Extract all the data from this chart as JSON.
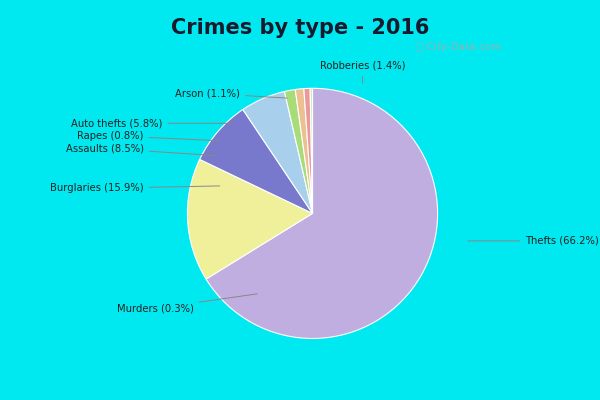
{
  "title": "Crimes by type - 2016",
  "labels": [
    "Thefts",
    "Burglaries",
    "Assaults",
    "Auto thefts",
    "Robberies",
    "Arson",
    "Rapes",
    "Murders"
  ],
  "values": [
    66.2,
    15.9,
    8.5,
    5.8,
    1.4,
    1.1,
    0.8,
    0.3
  ],
  "colors": [
    "#c0aee0",
    "#f0f09a",
    "#7878cc",
    "#a8d0ec",
    "#a8dc78",
    "#ecc090",
    "#ec9898",
    "#c8ecc0"
  ],
  "bg_color": "#ddf0dd",
  "outer_bg": "#00e8f0",
  "title_fontsize": 15,
  "label_texts": [
    "Thefts (66.2%)",
    "Burglaries (15.9%)",
    "Assaults (8.5%)",
    "Auto thefts (5.8%)",
    "Robberies (1.4%)",
    "Arson (1.1%)",
    "Rapes (0.8%)",
    "Murders (0.3%)"
  ]
}
